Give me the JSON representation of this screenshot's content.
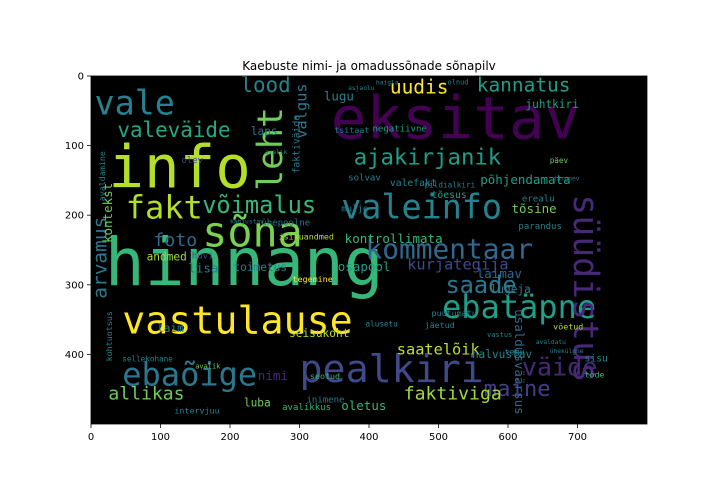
{
  "chart_data": {
    "type": "wordcloud",
    "title": "Kaebuste nimi- ja omadussõnade sõnapilv",
    "background": "#000000",
    "xlim": [
      0,
      800
    ],
    "ylim": [
      0,
      500
    ],
    "y_inverted": true,
    "x_ticks": [
      "0",
      "100",
      "200",
      "300",
      "400",
      "500",
      "600",
      "700"
    ],
    "y_ticks": [
      "0",
      "100",
      "200",
      "300",
      "400"
    ],
    "words": [
      {
        "text": "hinnang",
        "x": 20,
        "y": 300,
        "size": 95,
        "color": "#35b779",
        "rot": 0
      },
      {
        "text": "info",
        "x": 25,
        "y": 160,
        "size": 85,
        "color": "#b5de2b",
        "rot": 0
      },
      {
        "text": "eksitav",
        "x": 345,
        "y": 90,
        "size": 85,
        "color": "#440154",
        "rot": 0
      },
      {
        "text": "sõna",
        "x": 160,
        "y": 245,
        "size": 60,
        "color": "#7ad151",
        "rot": 0
      },
      {
        "text": "vastulause",
        "x": 45,
        "y": 370,
        "size": 55,
        "color": "#fde725",
        "rot": 0
      },
      {
        "text": "pealkiri",
        "x": 300,
        "y": 440,
        "size": 55,
        "color": "#3e4a89",
        "rot": 0
      },
      {
        "text": "valeinfo",
        "x": 360,
        "y": 205,
        "size": 48,
        "color": "#26828e",
        "rot": 0
      },
      {
        "text": "vale",
        "x": 5,
        "y": 55,
        "size": 48,
        "color": "#26828e",
        "rot": 0
      },
      {
        "text": "ebatäpne",
        "x": 505,
        "y": 348,
        "size": 46,
        "color": "#1f9e89",
        "rot": 0
      },
      {
        "text": "ebaõige",
        "x": 45,
        "y": 445,
        "size": 46,
        "color": "#2a788e",
        "rot": 0
      },
      {
        "text": "kommentaar",
        "x": 395,
        "y": 262,
        "size": 40,
        "color": "#31688e",
        "rot": 0
      },
      {
        "text": "fakt",
        "x": 50,
        "y": 205,
        "size": 46,
        "color": "#b5de2b",
        "rot": 0
      },
      {
        "text": "leht",
        "x": 275,
        "y": 165,
        "size": 50,
        "color": "#6ece58",
        "rot": 270
      },
      {
        "text": "süüdistus",
        "x": 695,
        "y": 170,
        "size": 50,
        "color": "#482878",
        "rot": 90
      },
      {
        "text": "väide",
        "x": 620,
        "y": 430,
        "size": 36,
        "color": "#482878",
        "rot": 0
      },
      {
        "text": "maine",
        "x": 565,
        "y": 460,
        "size": 32,
        "color": "#433e85",
        "rot": 0
      },
      {
        "text": "võimalus",
        "x": 160,
        "y": 197,
        "size": 34,
        "color": "#35b779",
        "rot": 0
      },
      {
        "text": "ajakirjanik",
        "x": 378,
        "y": 127,
        "size": 32,
        "color": "#1f9e89",
        "rot": 0
      },
      {
        "text": "saade",
        "x": 510,
        "y": 312,
        "size": 34,
        "color": "#2a788e",
        "rot": 0
      },
      {
        "text": "valeväide",
        "x": 38,
        "y": 88,
        "size": 30,
        "color": "#22a884",
        "rot": 0
      },
      {
        "text": "lood",
        "x": 215,
        "y": 23,
        "size": 30,
        "color": "#26828e",
        "rot": 0
      },
      {
        "text": "kannatus",
        "x": 555,
        "y": 22,
        "size": 28,
        "color": "#1f9e89",
        "rot": 0
      },
      {
        "text": "uudis",
        "x": 430,
        "y": 25,
        "size": 28,
        "color": "#fde725",
        "rot": 0
      },
      {
        "text": "arvamus",
        "x": 22,
        "y": 320,
        "size": 28,
        "color": "#2a788e",
        "rot": 270
      },
      {
        "text": "foto",
        "x": 90,
        "y": 244,
        "size": 26,
        "color": "#31688e",
        "rot": 0
      },
      {
        "text": "faktiviga",
        "x": 450,
        "y": 465,
        "size": 26,
        "color": "#a0da39",
        "rot": 0
      },
      {
        "text": "allikas",
        "x": 25,
        "y": 465,
        "size": 26,
        "color": "#6ece58",
        "rot": 0
      },
      {
        "text": "saatelõik",
        "x": 440,
        "y": 400,
        "size": 22,
        "color": "#c2df23",
        "rot": 0
      },
      {
        "text": "kurjategija",
        "x": 455,
        "y": 278,
        "size": 22,
        "color": "#3e4a89",
        "rot": 0
      },
      {
        "text": "põhjendamata",
        "x": 560,
        "y": 155,
        "size": 18,
        "color": "#1f9e89",
        "rot": 0
      },
      {
        "text": "kontrollimata",
        "x": 365,
        "y": 240,
        "size": 18,
        "color": "#35b779",
        "rot": 0
      },
      {
        "text": "usaldusväärsus",
        "x": 610,
        "y": 335,
        "size": 18,
        "color": "#31688e",
        "rot": 90
      },
      {
        "text": "tõsine",
        "x": 605,
        "y": 197,
        "size": 18,
        "color": "#6ece58",
        "rot": 0
      },
      {
        "text": "laimav",
        "x": 555,
        "y": 290,
        "size": 18,
        "color": "#31688e",
        "rot": 0
      },
      {
        "text": "juhtkiri",
        "x": 625,
        "y": 46,
        "size": 16,
        "color": "#1f9e89",
        "rot": 0
      },
      {
        "text": "valgus",
        "x": 310,
        "y": 90,
        "size": 22,
        "color": "#2a788e",
        "rot": 270
      },
      {
        "text": "lugu",
        "x": 335,
        "y": 35,
        "size": 18,
        "color": "#26828e",
        "rot": 0
      },
      {
        "text": "halvustav",
        "x": 548,
        "y": 405,
        "size": 16,
        "color": "#26828e",
        "rot": 0
      },
      {
        "text": "laps",
        "x": 230,
        "y": 85,
        "size": 16,
        "color": "#2a788e",
        "rot": 0
      },
      {
        "text": "osapool",
        "x": 355,
        "y": 280,
        "size": 18,
        "color": "#1f9e89",
        "rot": 0
      },
      {
        "text": "andmed",
        "x": 80,
        "y": 265,
        "size": 16,
        "color": "#a0da39",
        "rot": 0
      },
      {
        "text": "toimetus",
        "x": 205,
        "y": 280,
        "size": 16,
        "color": "#26828e",
        "rot": 0
      },
      {
        "text": "lisa",
        "x": 140,
        "y": 282,
        "size": 18,
        "color": "#2a788e",
        "rot": 0
      },
      {
        "text": "seisukoht",
        "x": 285,
        "y": 375,
        "size": 16,
        "color": "#b5de2b",
        "rot": 0
      },
      {
        "text": "nimi",
        "x": 240,
        "y": 437,
        "size": 18,
        "color": "#482878",
        "rot": 0
      },
      {
        "text": "luba",
        "x": 220,
        "y": 475,
        "size": 16,
        "color": "#6ece58",
        "rot": 0
      },
      {
        "text": "oletus",
        "x": 360,
        "y": 480,
        "size": 18,
        "color": "#35b779",
        "rot": 0
      },
      {
        "text": "laim",
        "x": 95,
        "y": 368,
        "size": 16,
        "color": "#26828e",
        "rot": 0
      },
      {
        "text": "kontekst",
        "x": 30,
        "y": 240,
        "size": 18,
        "color": "#6ece58",
        "rot": 270
      },
      {
        "text": "faktiväide",
        "x": 300,
        "y": 140,
        "size": 14,
        "color": "#2a788e",
        "rot": 270
      },
      {
        "text": "lugeja",
        "x": 575,
        "y": 312,
        "size": 16,
        "color": "#26828e",
        "rot": 0
      },
      {
        "text": "valefakt",
        "x": 430,
        "y": 158,
        "size": 14,
        "color": "#26828e",
        "rot": 0
      },
      {
        "text": "tõesus",
        "x": 490,
        "y": 175,
        "size": 14,
        "color": "#1f9e89",
        "rot": 0
      },
      {
        "text": "sisu",
        "x": 710,
        "y": 410,
        "size": 14,
        "color": "#26828e",
        "rot": 0
      },
      {
        "text": "erealu",
        "x": 620,
        "y": 180,
        "size": 13,
        "color": "#26828e",
        "rot": 0
      },
      {
        "text": "parandus",
        "x": 615,
        "y": 220,
        "size": 13,
        "color": "#26828e",
        "rot": 0
      },
      {
        "text": "inimene",
        "x": 310,
        "y": 469,
        "size": 13,
        "color": "#2a788e",
        "rot": 0
      },
      {
        "text": "avalikkus",
        "x": 275,
        "y": 480,
        "size": 13,
        "color": "#35b779",
        "rot": 0
      },
      {
        "text": "ühepoolne",
        "x": 245,
        "y": 215,
        "size": 13,
        "color": "#2a788e",
        "rot": 0
      },
      {
        "text": "isikuandmed",
        "x": 270,
        "y": 235,
        "size": 12,
        "color": "#b5de2b",
        "rot": 0
      },
      {
        "text": "tegemine",
        "x": 290,
        "y": 296,
        "size": 12,
        "color": "#fde725",
        "rot": 0
      },
      {
        "text": "negatiivne",
        "x": 405,
        "y": 80,
        "size": 13,
        "color": "#1f9e89",
        "rot": 0
      },
      {
        "text": "tsitaat",
        "x": 350,
        "y": 82,
        "size": 12,
        "color": "#2a788e",
        "rot": 0
      },
      {
        "text": "mulje",
        "x": 360,
        "y": 195,
        "size": 13,
        "color": "#26828e",
        "rot": 0
      },
      {
        "text": "solvav",
        "x": 370,
        "y": 150,
        "size": 13,
        "color": "#26828e",
        "rot": 0
      },
      {
        "text": "huvi",
        "x": 145,
        "y": 262,
        "size": 13,
        "color": "#3e4a89",
        "rot": 0
      },
      {
        "text": "olev",
        "x": 130,
        "y": 125,
        "size": 13,
        "color": "#3e4a89",
        "rot": 0
      },
      {
        "text": "intervjuu",
        "x": 120,
        "y": 485,
        "size": 12,
        "color": "#26828e",
        "rot": 0
      },
      {
        "text": "tegu",
        "x": 595,
        "y": 400,
        "size": 12,
        "color": "#2a788e",
        "rot": 0
      },
      {
        "text": "töde",
        "x": 710,
        "y": 433,
        "size": 12,
        "color": "#35b779",
        "rot": 0
      },
      {
        "text": "võetud",
        "x": 665,
        "y": 364,
        "size": 12,
        "color": "#b5de2b",
        "rot": 0
      },
      {
        "text": "seotud",
        "x": 315,
        "y": 435,
        "size": 12,
        "color": "#35b779",
        "rot": 0
      },
      {
        "text": "jäetud",
        "x": 480,
        "y": 362,
        "size": 12,
        "color": "#26828e",
        "rot": 0
      },
      {
        "text": "puutumatu",
        "x": 490,
        "y": 345,
        "size": 12,
        "color": "#26828e",
        "rot": 0
      },
      {
        "text": "kohtuotsus",
        "x": 30,
        "y": 410,
        "size": 12,
        "color": "#26828e",
        "rot": 270
      },
      {
        "text": "avaldamine",
        "x": 20,
        "y": 180,
        "size": 12,
        "color": "#26828e",
        "rot": 270
      },
      {
        "text": "sellekohane",
        "x": 45,
        "y": 410,
        "size": 11,
        "color": "#26828e",
        "rot": 0
      },
      {
        "text": "päev",
        "x": 660,
        "y": 125,
        "size": 11,
        "color": "#6ece58",
        "rot": 0
      },
      {
        "text": "vastus",
        "x": 570,
        "y": 375,
        "size": 10,
        "color": "#26828e",
        "rot": 0
      },
      {
        "text": "alusetu",
        "x": 395,
        "y": 360,
        "size": 11,
        "color": "#26828e",
        "rot": 0
      },
      {
        "text": "avalik",
        "x": 150,
        "y": 420,
        "size": 10,
        "color": "#6ece58",
        "rot": 0
      },
      {
        "text": "pildialkiri",
        "x": 480,
        "y": 160,
        "size": 11,
        "color": "#26828e",
        "rot": 0
      },
      {
        "text": "olnud",
        "x": 513,
        "y": 12,
        "size": 10,
        "color": "#26828e",
        "rot": 0
      },
      {
        "text": "haigla",
        "x": 410,
        "y": 12,
        "size": 9,
        "color": "#26828e",
        "rot": 0
      },
      {
        "text": "asjaolu",
        "x": 370,
        "y": 20,
        "size": 9,
        "color": "#26828e",
        "rot": 0
      },
      {
        "text": "ühekülgne",
        "x": 660,
        "y": 398,
        "size": 9,
        "color": "#26828e",
        "rot": 0
      },
      {
        "text": "avaldatu",
        "x": 640,
        "y": 385,
        "size": 9,
        "color": "#26828e",
        "rot": 0
      },
      {
        "text": "kahjustav",
        "x": 200,
        "y": 212,
        "size": 9,
        "color": "#26828e",
        "rot": 0
      },
      {
        "text": "avalik",
        "x": 250,
        "y": 112,
        "size": 9,
        "color": "#26828e",
        "rot": 0
      },
      {
        "text": "järgnev",
        "x": 665,
        "y": 150,
        "size": 9,
        "color": "#26828e",
        "rot": 0
      }
    ]
  }
}
